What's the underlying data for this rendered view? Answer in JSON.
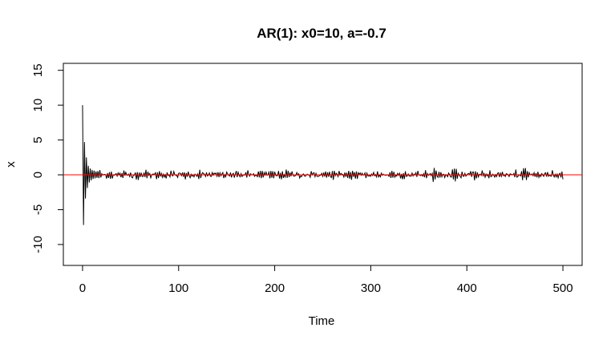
{
  "chart_data": {
    "type": "line",
    "title": "AR(1): x0=10, a=-0.7",
    "xlabel": "Time",
    "ylabel": "x",
    "xlim": [
      -20,
      520
    ],
    "ylim": [
      -13,
      16
    ],
    "xticks": [
      0,
      100,
      200,
      300,
      400,
      500
    ],
    "yticks": [
      -10,
      -5,
      0,
      5,
      10,
      15
    ],
    "grid": false,
    "legend": "none",
    "reference_line": {
      "y": 0,
      "color": "#ff0000"
    },
    "series": [
      {
        "color": "#000000",
        "x0": 10,
        "a": -0.7,
        "n": 500,
        "values_head": [
          10.0,
          -7.2,
          4.7,
          -3.4,
          2.5,
          -1.9,
          1.3,
          -1.1,
          0.9,
          -0.8,
          0.7,
          -0.6,
          0.6,
          -0.5,
          0.5
        ]
      }
    ]
  }
}
